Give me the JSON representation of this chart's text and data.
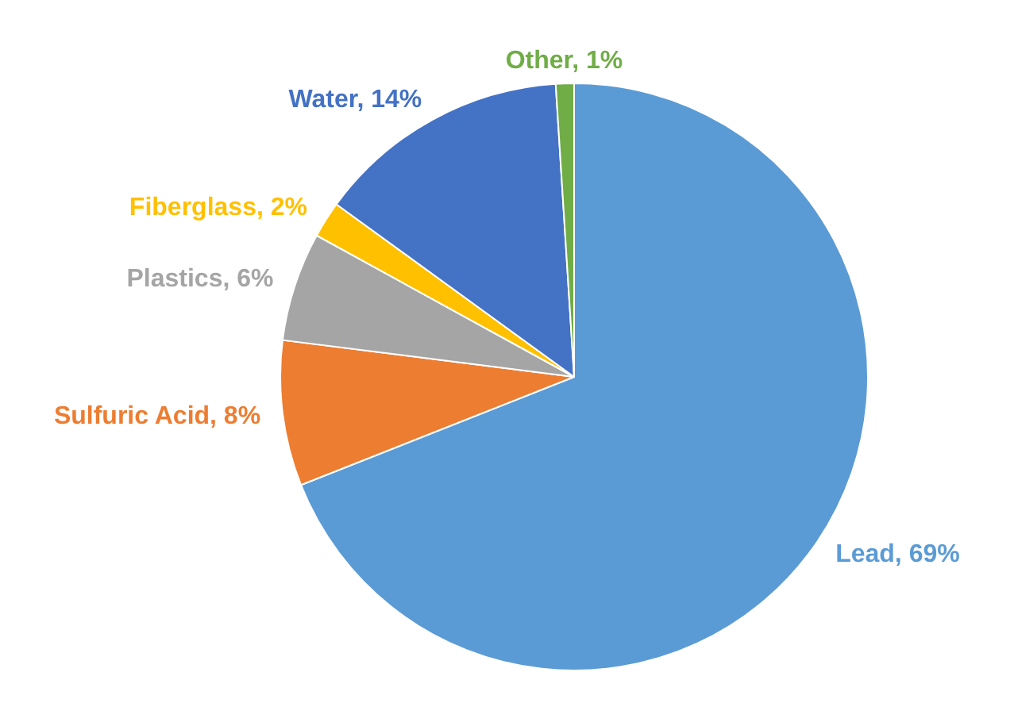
{
  "chart_data": {
    "type": "pie",
    "categories": [
      "Lead",
      "Sulfuric Acid",
      "Plastics",
      "Fiberglass",
      "Water",
      "Other"
    ],
    "values": [
      69,
      8,
      6,
      2,
      14,
      1
    ],
    "value_labels": [
      "69%",
      "8%",
      "6%",
      "2%",
      "14%",
      "1%"
    ],
    "colors": [
      "#5b9bd5",
      "#ed7d31",
      "#a5a5a5",
      "#ffc000",
      "#4472c4",
      "#70ad47"
    ],
    "legend": false
  }
}
